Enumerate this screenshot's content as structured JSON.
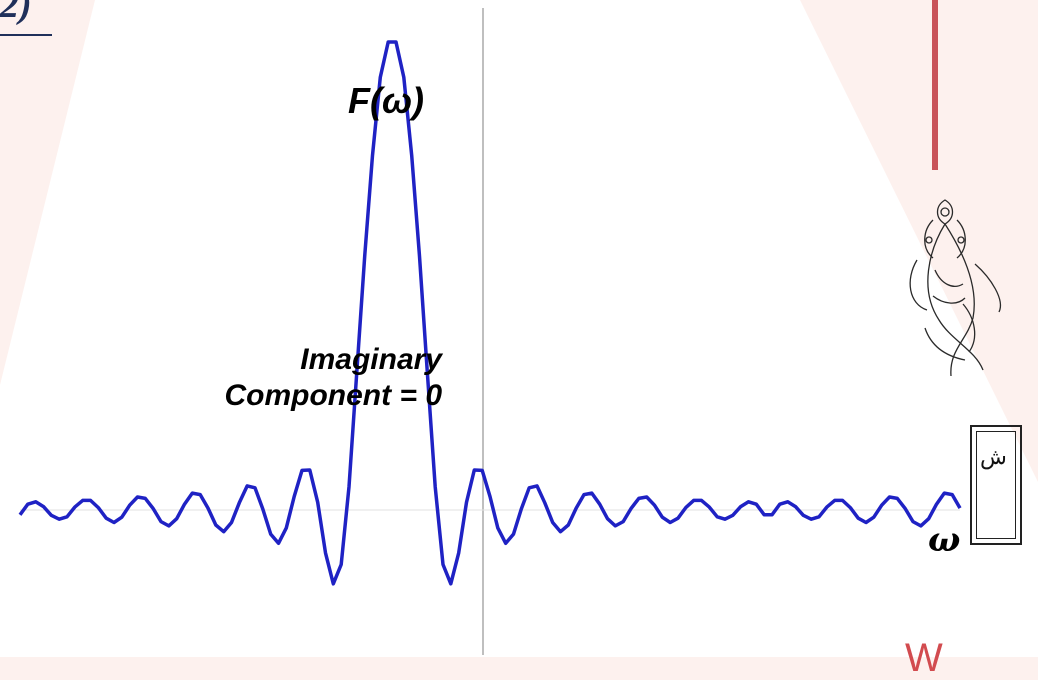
{
  "page": {
    "corner_text": "2)",
    "colors": {
      "background": "#fdf1ee",
      "white_panel": "#ffffff",
      "curve": "#1f22c4",
      "axis": "#aaaaaa",
      "accent_bar": "#c9545a",
      "red_mark": "#d24b4f"
    },
    "decorations": {
      "ornament": "floral-ornament-icon",
      "framed_box_glyph": "ش",
      "bottom_red_mark": "W"
    }
  },
  "chart_data": {
    "type": "line",
    "title": "",
    "ylabel": "F(ω)",
    "xlabel": "ω",
    "annotation_lines": [
      "Imaginary",
      "Component = 0"
    ],
    "x": [
      -60,
      -59,
      -58,
      -57,
      -56,
      -55,
      -54,
      -53,
      -52,
      -51,
      -50,
      -49,
      -48,
      -47,
      -46,
      -45,
      -44,
      -43,
      -42,
      -41,
      -40,
      -39,
      -38,
      -37,
      -36,
      -35,
      -34,
      -33,
      -32,
      -31,
      -30,
      -29,
      -28,
      -27,
      -26,
      -25,
      -24,
      -23,
      -22,
      -21,
      -20,
      -19,
      -18,
      -17,
      -16,
      -15,
      -14,
      -13,
      -12,
      -11,
      -10,
      -9,
      -8,
      -7,
      -6,
      -5,
      -4,
      -3,
      -2,
      -1,
      0,
      1,
      2,
      3,
      4,
      5,
      6,
      7,
      8,
      9,
      10,
      11,
      12,
      13,
      14,
      15,
      16,
      17,
      18,
      19,
      20,
      21,
      22,
      23,
      24,
      25,
      26,
      27,
      28,
      29,
      30,
      31,
      32,
      33,
      34,
      35,
      36,
      37,
      38,
      39,
      40,
      41,
      42,
      43,
      44,
      45,
      46,
      47,
      48,
      49,
      50,
      51,
      52,
      53,
      54,
      55,
      56,
      57,
      58,
      59,
      60
    ],
    "y": [
      -0.01,
      0.012,
      0.017,
      0.007,
      -0.011,
      -0.019,
      -0.014,
      0.006,
      0.02,
      0.02,
      0.005,
      -0.017,
      -0.026,
      -0.015,
      0.01,
      0.027,
      0.024,
      0.003,
      -0.024,
      -0.033,
      -0.018,
      0.012,
      0.035,
      0.032,
      0.004,
      -0.031,
      -0.045,
      -0.026,
      0.015,
      0.05,
      0.046,
      0.002,
      -0.05,
      -0.069,
      -0.037,
      0.028,
      0.082,
      0.083,
      0.016,
      -0.089,
      -0.153,
      -0.113,
      0.048,
      0.286,
      0.526,
      0.735,
      0.897,
      0.97,
      0.97,
      0.897,
      0.735,
      0.526,
      0.286,
      0.048,
      -0.113,
      -0.153,
      -0.089,
      0.016,
      0.083,
      0.082,
      0.028,
      -0.037,
      -0.069,
      -0.05,
      0.002,
      0.046,
      0.05,
      0.015,
      -0.026,
      -0.045,
      -0.031,
      0.004,
      0.032,
      0.035,
      0.012,
      -0.018,
      -0.033,
      -0.024,
      0.003,
      0.024,
      0.027,
      0.01,
      -0.015,
      -0.026,
      -0.017,
      0.005,
      0.02,
      0.02,
      0.006,
      -0.014,
      -0.019,
      -0.011,
      0.007,
      0.017,
      0.012,
      -0.01,
      -0.01,
      0.012,
      0.017,
      0.007,
      -0.011,
      -0.019,
      -0.014,
      0.006,
      0.02,
      0.02,
      0.005,
      -0.017,
      -0.026,
      -0.015,
      0.01,
      0.027,
      0.024,
      0.003,
      -0.024,
      -0.033,
      -0.018,
      0.012,
      0.035,
      0.032,
      0.004
    ],
    "xlim": [
      -60,
      60
    ],
    "ylim": [
      -0.2,
      1.0
    ],
    "grid": false,
    "legend": "none"
  }
}
